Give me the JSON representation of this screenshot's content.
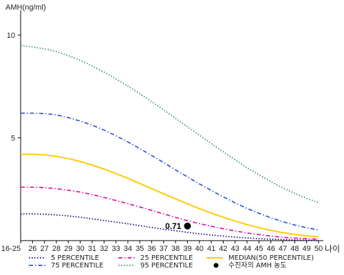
{
  "chart_data": {
    "type": "line",
    "ylabel": "AMH(ng/ml)",
    "xunit_label": "나이",
    "x_categories": [
      "16-25",
      "26",
      "27",
      "28",
      "29",
      "30",
      "31",
      "32",
      "33",
      "34",
      "35",
      "36",
      "37",
      "38",
      "39",
      "40",
      "41",
      "42",
      "43",
      "44",
      "45",
      "46",
      "47",
      "48",
      "49",
      "50"
    ],
    "yticks": [
      5,
      10
    ],
    "ylim": [
      0,
      11
    ],
    "grid": false,
    "legend_position": "bottom",
    "series": [
      {
        "name": "5 PERCENTILE",
        "color": "#000080",
        "style": "dotted",
        "values": [
          1.3,
          1.3,
          1.28,
          1.25,
          1.2,
          1.14,
          1.06,
          0.98,
          0.9,
          0.82,
          0.73,
          0.64,
          0.56,
          0.48,
          0.4,
          0.33,
          0.27,
          0.22,
          0.17,
          0.13,
          0.1,
          0.07,
          0.05,
          0.03,
          0.02,
          0.01
        ]
      },
      {
        "name": "25 PERCENTILE",
        "color": "#E0119F",
        "style": "dashdot",
        "values": [
          2.6,
          2.6,
          2.58,
          2.53,
          2.45,
          2.36,
          2.24,
          2.1,
          1.95,
          1.8,
          1.64,
          1.47,
          1.3,
          1.13,
          0.97,
          0.83,
          0.7,
          0.58,
          0.47,
          0.37,
          0.29,
          0.22,
          0.16,
          0.12,
          0.09,
          0.07
        ]
      },
      {
        "name": "MEDIAN(50 PERCENTILE)",
        "color": "#FFCC00",
        "style": "solid",
        "values": [
          4.2,
          4.2,
          4.17,
          4.1,
          3.99,
          3.85,
          3.68,
          3.48,
          3.26,
          3.03,
          2.78,
          2.53,
          2.28,
          2.03,
          1.79,
          1.56,
          1.34,
          1.14,
          0.95,
          0.78,
          0.63,
          0.5,
          0.39,
          0.3,
          0.23,
          0.18
        ]
      },
      {
        "name": "75 PERCENTILE",
        "color": "#3355CC",
        "style": "dashdot",
        "values": [
          6.2,
          6.2,
          6.18,
          6.12,
          5.98,
          5.82,
          5.62,
          5.38,
          5.1,
          4.8,
          4.48,
          4.14,
          3.8,
          3.44,
          3.1,
          2.76,
          2.44,
          2.13,
          1.84,
          1.57,
          1.33,
          1.11,
          0.92,
          0.76,
          0.63,
          0.52
        ]
      },
      {
        "name": "95 PERCENTILE",
        "color": "#2E8B57",
        "style": "dotted",
        "values": [
          9.5,
          9.42,
          9.33,
          9.2,
          9.0,
          8.77,
          8.5,
          8.2,
          7.87,
          7.52,
          7.15,
          6.76,
          6.36,
          5.95,
          5.54,
          5.13,
          4.72,
          4.32,
          3.93,
          3.55,
          3.2,
          2.87,
          2.57,
          2.3,
          2.06,
          1.85
        ]
      }
    ],
    "marker": {
      "name": "수진자의 AMH 농도",
      "x": "39",
      "y": 0.71,
      "label": "0.71",
      "color": "#000000"
    }
  }
}
